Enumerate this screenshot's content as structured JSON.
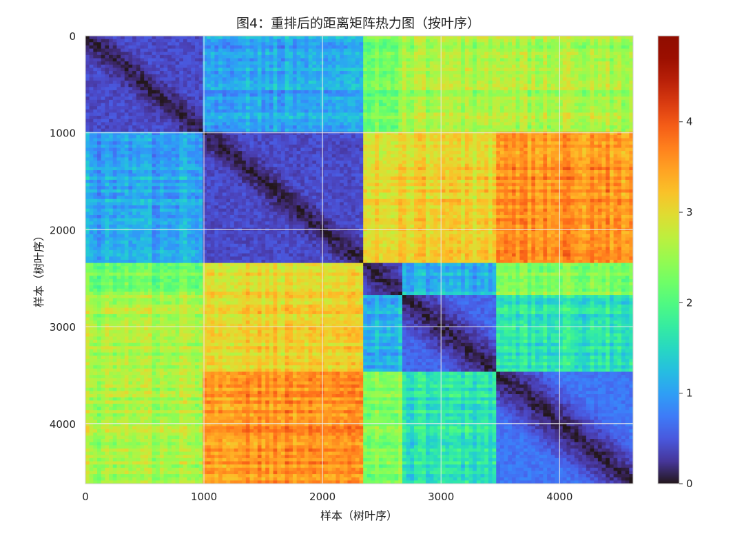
{
  "chart_data": {
    "type": "heatmap",
    "title": "图4：重排后的距离矩阵热力图（按叶序）",
    "xlabel": "样本（树叶序）",
    "ylabel": "样本（树叶序）",
    "xlim": [
      0,
      4620
    ],
    "ylim": [
      4620,
      0
    ],
    "x_ticks": [
      0,
      1000,
      2000,
      3000,
      4000
    ],
    "y_ticks": [
      0,
      1000,
      2000,
      3000,
      4000
    ],
    "grid": true,
    "colormap": "turbo",
    "colorbar": {
      "range": [
        0,
        4.95
      ],
      "ticks": [
        0,
        1,
        2,
        3,
        4
      ],
      "position": "right"
    },
    "cluster_boundaries": [
      0,
      1000,
      2330,
      2680,
      3450,
      4620
    ],
    "block_mean_values": [
      [
        0.4,
        1.1,
        2.3,
        2.6,
        2.6
      ],
      [
        1.1,
        0.4,
        3.1,
        3.1,
        3.6
      ],
      [
        2.3,
        3.1,
        0.7,
        1.2,
        2.4
      ],
      [
        2.6,
        3.1,
        1.2,
        0.6,
        1.6
      ],
      [
        2.6,
        3.6,
        2.4,
        1.6,
        0.7
      ]
    ]
  }
}
